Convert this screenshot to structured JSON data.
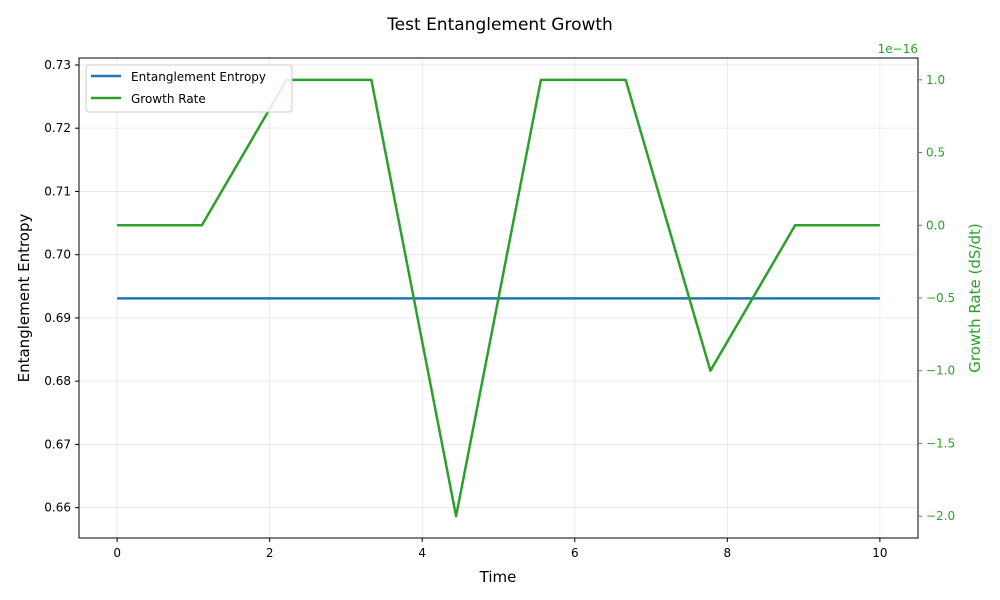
{
  "chart_data": {
    "type": "line",
    "title": "Test Entanglement Growth",
    "xlabel": "Time",
    "ylabel_left": "Entanglement Entropy",
    "ylabel_right": "Growth Rate (dS/dt)",
    "right_axis_offset_label": "1e−16",
    "xlim": [
      -0.5,
      10.5
    ],
    "ylim_left": [
      0.6552,
      0.7311
    ],
    "ylim_right": [
      -2.15,
      1.15
    ],
    "right_axis_scale_factor": 1e-16,
    "x_ticks": [
      0,
      2,
      4,
      6,
      8,
      10
    ],
    "x_tick_labels": [
      "0",
      "2",
      "4",
      "6",
      "8",
      "10"
    ],
    "y_left_ticks": [
      0.66,
      0.67,
      0.68,
      0.69,
      0.7,
      0.71,
      0.72,
      0.73
    ],
    "y_left_tick_labels": [
      "0.66",
      "0.67",
      "0.68",
      "0.69",
      "0.70",
      "0.71",
      "0.72",
      "0.73"
    ],
    "y_right_ticks": [
      -2.0,
      -1.5,
      -1.0,
      -0.5,
      0.0,
      0.5,
      1.0
    ],
    "y_right_tick_labels": [
      "−2.0",
      "−1.5",
      "−1.0",
      "−0.5",
      "0.0",
      "0.5",
      "1.0"
    ],
    "grid": true,
    "legend_position": "top-left",
    "colors": {
      "entropy": "#1f77b4",
      "growth": "#2ca02c",
      "text": "#000000"
    },
    "series": [
      {
        "name": "Entanglement Entropy",
        "axis": "left",
        "x": [
          0,
          1.111,
          2.222,
          3.333,
          4.444,
          5.556,
          6.667,
          7.778,
          8.889,
          10
        ],
        "values": [
          0.6931,
          0.6931,
          0.6931,
          0.6931,
          0.6931,
          0.6931,
          0.6931,
          0.6931,
          0.6931,
          0.6931
        ]
      },
      {
        "name": "Growth Rate",
        "axis": "right",
        "x": [
          0,
          1.111,
          2.222,
          3.333,
          4.444,
          5.556,
          6.667,
          7.778,
          8.889,
          10
        ],
        "values": [
          0,
          0,
          1,
          1,
          -2,
          1,
          1,
          -1,
          0,
          0
        ]
      }
    ]
  }
}
